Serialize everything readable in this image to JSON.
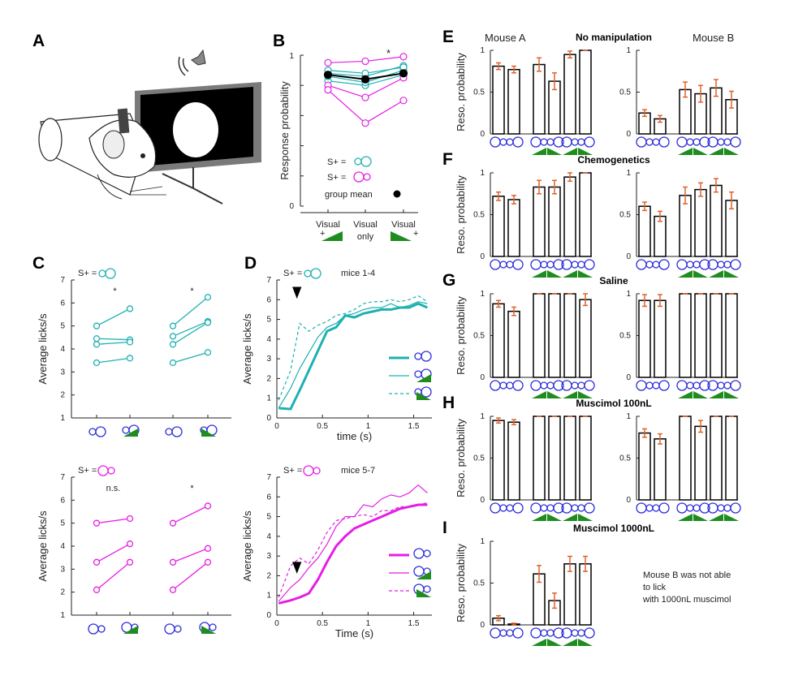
{
  "colors": {
    "teal": "#1fb0b0",
    "magenta": "#e51ee5",
    "bar_err": "#e0622a",
    "blue_icon": "#2d2ddb",
    "green": "#1f8c1f"
  },
  "panels": {
    "A": "A",
    "B": "B",
    "C": "C",
    "D": "D",
    "E": "E",
    "F": "F",
    "G": "G",
    "H": "H",
    "I": "I"
  },
  "titles": {
    "mouse_a": "Mouse A",
    "mouse_b": "Mouse B",
    "E": "No manipulation",
    "F": "Chemogenetics",
    "G": "Saline",
    "H": "Muscimol 100nL",
    "I": "Muscimol 1000nL",
    "d_top": "mice 1-4",
    "d_bottom": "mice 5-7"
  },
  "labels": {
    "resp_prob": "Response probability",
    "reso_prob": "Reso. probability",
    "licks": "Average licks/s",
    "time_lower": "time (s)",
    "time_upper": "Time (s)",
    "s_plus": "S+ =",
    "group_mean": "group mean",
    "ns": "n.s.",
    "star": "*",
    "b_cat1": "Visual",
    "b_cat1_sub": "+",
    "b_cat2": "Visual",
    "b_cat2_sub": "only",
    "b_cat3": "Visual",
    "b_cat3_sub": "+",
    "note_line1": "Mouse B was not able",
    "note_line2": "to lick",
    "note_line3": "with 1000nL muscimol"
  },
  "ticks": {
    "prob": [
      "0",
      "0.5",
      "1"
    ],
    "b_y": [
      "0",
      "1"
    ],
    "licks": [
      "1",
      "2",
      "3",
      "4",
      "5",
      "6",
      "7"
    ],
    "time": [
      "0",
      "0.5",
      "1",
      "1.5"
    ]
  },
  "chart_data": [
    {
      "panel": "B",
      "type": "line",
      "categories": [
        "Visual +",
        "Visual only",
        "Visual +"
      ],
      "ylabel": "Response probability",
      "ylim": [
        0,
        1
      ],
      "series": [
        {
          "name": "S+ = big circle",
          "color": "teal",
          "lines": [
            [
              0.88,
              0.86,
              0.93
            ],
            [
              0.83,
              0.8,
              0.87
            ],
            [
              0.86,
              0.82,
              0.9
            ],
            [
              0.9,
              0.88,
              0.92
            ]
          ]
        },
        {
          "name": "S+ = small circle",
          "color": "magenta",
          "lines": [
            [
              0.95,
              0.96,
              0.99
            ],
            [
              0.8,
              0.72,
              0.85
            ],
            [
              0.77,
              0.55,
              0.7
            ]
          ]
        },
        {
          "name": "group mean",
          "color": "black",
          "values": [
            0.87,
            0.84,
            0.88
          ]
        }
      ]
    },
    {
      "panel": "C-top",
      "type": "line",
      "ylabel": "Average licks/s",
      "ylim": [
        1,
        7
      ],
      "groups": [
        {
          "pairs": [
            [
              5.0,
              5.75
            ],
            [
              4.45,
              4.4
            ],
            [
              4.2,
              4.3
            ],
            [
              3.4,
              3.6
            ]
          ],
          "marker": "*"
        },
        {
          "pairs": [
            [
              5.0,
              6.25
            ],
            [
              4.55,
              5.2
            ],
            [
              4.2,
              5.15
            ],
            [
              3.4,
              3.85
            ]
          ],
          "marker": "*"
        }
      ]
    },
    {
      "panel": "C-bottom",
      "type": "line",
      "ylabel": "Average licks/s",
      "ylim": [
        1,
        7
      ],
      "groups": [
        {
          "pairs": [
            [
              5.0,
              5.2
            ],
            [
              3.3,
              4.1
            ],
            [
              2.1,
              3.3
            ]
          ],
          "marker": "n.s."
        },
        {
          "pairs": [
            [
              5.0,
              5.75
            ],
            [
              3.3,
              3.9
            ],
            [
              2.1,
              3.3
            ]
          ],
          "marker": "*"
        }
      ]
    },
    {
      "panel": "D-top",
      "type": "line",
      "xlabel": "time (s)",
      "ylabel": "Average licks/s",
      "xlim": [
        0,
        1.7
      ],
      "ylim": [
        0,
        7
      ],
      "x": [
        0.02,
        0.15,
        0.25,
        0.35,
        0.45,
        0.55,
        0.65,
        0.75,
        0.85,
        0.95,
        1.05,
        1.15,
        1.25,
        1.35,
        1.45,
        1.55,
        1.65
      ],
      "series": [
        {
          "name": "big circle",
          "style": "thick",
          "values": [
            0.5,
            0.45,
            1.4,
            2.4,
            3.4,
            4.4,
            4.6,
            5.2,
            5.1,
            5.3,
            5.4,
            5.5,
            5.5,
            5.6,
            5.6,
            5.8,
            5.6
          ]
        },
        {
          "name": "big circle + grating",
          "style": "thin",
          "values": [
            0.5,
            1.5,
            2.5,
            3.3,
            4.1,
            4.6,
            4.8,
            5.2,
            5.3,
            5.5,
            5.6,
            5.6,
            5.8,
            5.6,
            5.7,
            5.9,
            5.8
          ]
        },
        {
          "name": "big circle + reverse",
          "style": "dashed",
          "values": [
            0.9,
            2.4,
            4.8,
            4.4,
            4.7,
            4.9,
            5.2,
            5.3,
            5.5,
            5.8,
            5.9,
            5.9,
            6.0,
            5.9,
            6.0,
            6.2,
            5.9
          ]
        }
      ]
    },
    {
      "panel": "D-bottom",
      "type": "line",
      "xlabel": "Time (s)",
      "ylabel": "Average licks/s",
      "xlim": [
        0,
        1.7
      ],
      "ylim": [
        0,
        7
      ],
      "x": [
        0.02,
        0.15,
        0.25,
        0.35,
        0.45,
        0.55,
        0.65,
        0.75,
        0.85,
        0.95,
        1.05,
        1.15,
        1.25,
        1.35,
        1.45,
        1.55,
        1.65
      ],
      "series": [
        {
          "name": "small circle",
          "style": "thick",
          "values": [
            0.6,
            0.75,
            0.9,
            1.1,
            1.8,
            2.7,
            3.5,
            4.0,
            4.4,
            4.6,
            4.8,
            5.0,
            5.2,
            5.4,
            5.5,
            5.6,
            5.6
          ]
        },
        {
          "name": "small circle + grating",
          "style": "thin",
          "values": [
            0.7,
            1.4,
            1.8,
            2.4,
            2.9,
            3.6,
            4.5,
            5.0,
            5.0,
            5.6,
            5.5,
            5.9,
            6.1,
            6.0,
            6.2,
            6.6,
            6.2
          ]
        },
        {
          "name": "small circle + reverse",
          "style": "dashed",
          "values": [
            0.9,
            2.5,
            2.9,
            2.6,
            3.3,
            4.2,
            4.8,
            4.9,
            5.0,
            5.1,
            5.0,
            5.3,
            5.3,
            5.5,
            5.5,
            5.6,
            5.7
          ]
        }
      ]
    },
    {
      "panel": "E",
      "type": "bar",
      "title": "No manipulation",
      "mouse_a": {
        "values": [
          0.81,
          0.77,
          0.83,
          0.63,
          0.95,
          1.0
        ],
        "errors": [
          0.04,
          0.04,
          0.08,
          0.1,
          0.04,
          0
        ]
      },
      "mouse_b": {
        "values": [
          0.25,
          0.18,
          0.53,
          0.48,
          0.55,
          0.41
        ],
        "errors": [
          0.04,
          0.04,
          0.09,
          0.1,
          0.1,
          0.1
        ]
      }
    },
    {
      "panel": "F",
      "type": "bar",
      "title": "Chemogenetics",
      "mouse_a": {
        "values": [
          0.72,
          0.68,
          0.83,
          0.83,
          0.95,
          1.0
        ],
        "errors": [
          0.05,
          0.05,
          0.08,
          0.08,
          0.05,
          0
        ]
      },
      "mouse_b": {
        "values": [
          0.6,
          0.48,
          0.73,
          0.8,
          0.85,
          0.67
        ],
        "errors": [
          0.05,
          0.06,
          0.1,
          0.08,
          0.08,
          0.1
        ]
      }
    },
    {
      "panel": "G",
      "type": "bar",
      "title": "Saline",
      "mouse_a": {
        "values": [
          0.88,
          0.79,
          1.0,
          1.0,
          1.0,
          0.93
        ],
        "errors": [
          0.04,
          0.05,
          0,
          0,
          0,
          0.07
        ]
      },
      "mouse_b": {
        "values": [
          0.92,
          0.92,
          1.0,
          1.0,
          1.0,
          1.0
        ],
        "errors": [
          0.07,
          0.07,
          0,
          0,
          0,
          0
        ]
      }
    },
    {
      "panel": "H",
      "type": "bar",
      "title": "Muscimol 100nL",
      "mouse_a": {
        "values": [
          0.95,
          0.93,
          1.0,
          1.0,
          1.0,
          1.0
        ],
        "errors": [
          0.03,
          0.03,
          0,
          0,
          0,
          0
        ]
      },
      "mouse_b": {
        "values": [
          0.8,
          0.73,
          1.0,
          0.88,
          1.0,
          1.0
        ],
        "errors": [
          0.05,
          0.06,
          0,
          0.07,
          0,
          0
        ]
      }
    },
    {
      "panel": "I",
      "type": "bar",
      "title": "Muscimol 1000nL",
      "mouse_a": {
        "values": [
          0.08,
          0.01,
          0.61,
          0.29,
          0.73,
          0.73
        ],
        "errors": [
          0.03,
          0.01,
          0.1,
          0.09,
          0.09,
          0.09
        ]
      }
    }
  ]
}
